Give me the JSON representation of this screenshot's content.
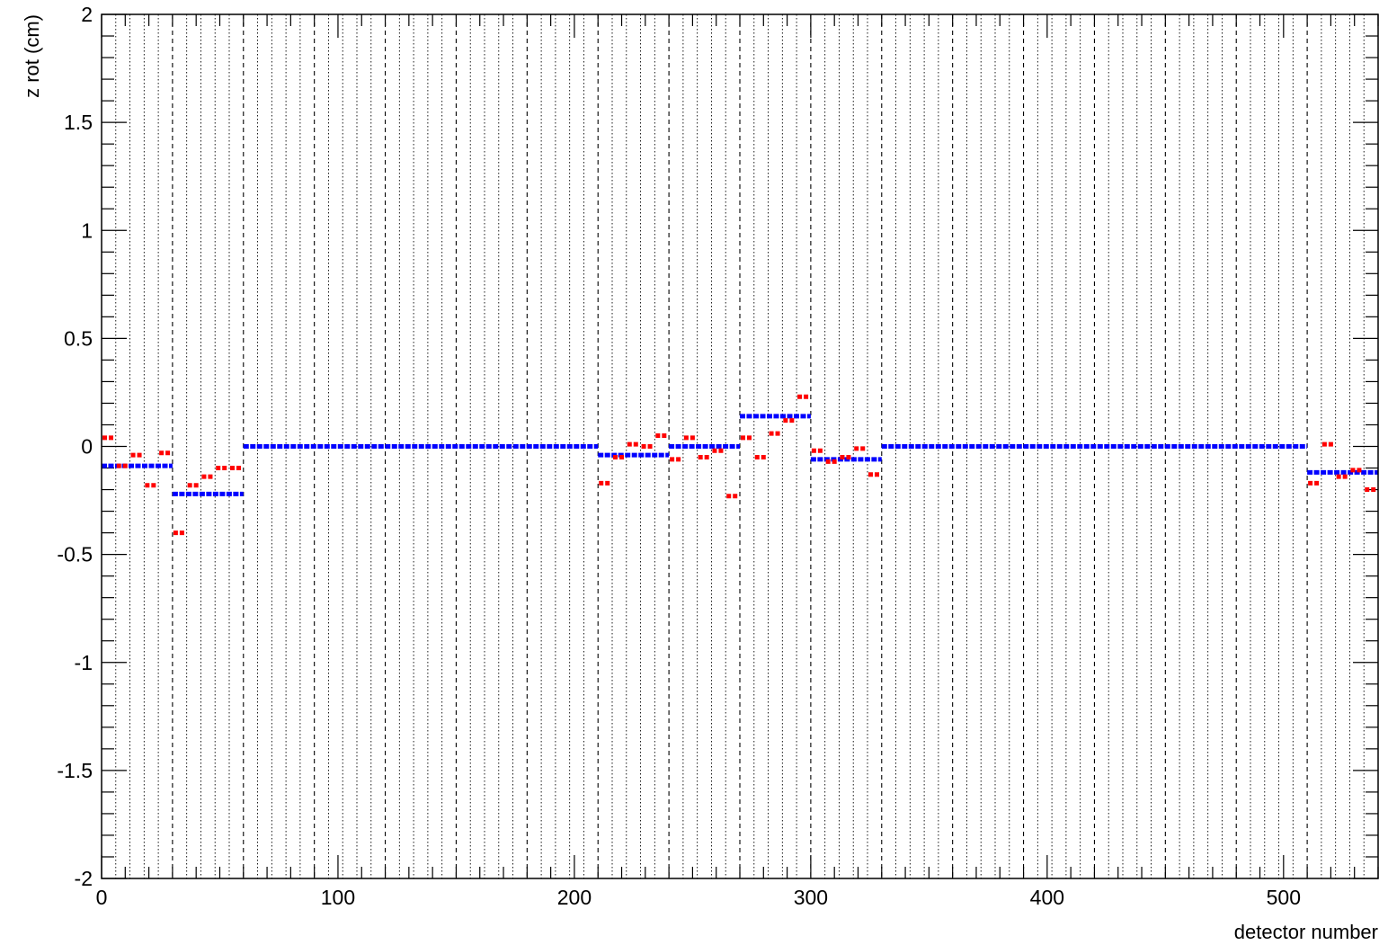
{
  "chart_data": {
    "type": "scatter",
    "title": "",
    "xlabel": "detector number",
    "ylabel": "z rot (cm)",
    "xlim": [
      0,
      540
    ],
    "ylim": [
      -2,
      2
    ],
    "x_ticks": [
      0,
      100,
      200,
      300,
      400,
      500
    ],
    "x_tick_labels": [
      "0",
      "100",
      "200",
      "300",
      "400",
      "500"
    ],
    "y_ticks": [
      -2,
      -1.5,
      -1,
      -0.5,
      0,
      0.5,
      1,
      1.5,
      2
    ],
    "y_tick_labels": [
      "-2",
      "-1.5",
      "-1",
      "-0.5",
      "0",
      "0.5",
      "1",
      "1.5",
      "2"
    ],
    "grid": {
      "dotted_every": 6,
      "dashed_every": 30
    },
    "series": [
      {
        "color": "#ff0000",
        "marker": "short horizontal dash per detector",
        "segments": [
          {
            "x": [
              0,
              6
            ],
            "y": 0.04
          },
          {
            "x": [
              6,
              12
            ],
            "y": -0.09
          },
          {
            "x": [
              12,
              18
            ],
            "y": -0.04
          },
          {
            "x": [
              18,
              24
            ],
            "y": -0.18
          },
          {
            "x": [
              24,
              30
            ],
            "y": -0.03
          },
          {
            "x": [
              30,
              36
            ],
            "y": -0.4
          },
          {
            "x": [
              36,
              42
            ],
            "y": -0.18
          },
          {
            "x": [
              42,
              48
            ],
            "y": -0.14
          },
          {
            "x": [
              48,
              54
            ],
            "y": -0.1
          },
          {
            "x": [
              54,
              60
            ],
            "y": -0.1
          },
          {
            "x": [
              210,
              216
            ],
            "y": -0.17
          },
          {
            "x": [
              216,
              222
            ],
            "y": -0.05
          },
          {
            "x": [
              222,
              228
            ],
            "y": 0.01
          },
          {
            "x": [
              228,
              234
            ],
            "y": 0.0
          },
          {
            "x": [
              234,
              240
            ],
            "y": 0.05
          },
          {
            "x": [
              240,
              246
            ],
            "y": -0.06
          },
          {
            "x": [
              246,
              252
            ],
            "y": 0.04
          },
          {
            "x": [
              252,
              258
            ],
            "y": -0.05
          },
          {
            "x": [
              258,
              264
            ],
            "y": -0.02
          },
          {
            "x": [
              264,
              270
            ],
            "y": -0.23
          },
          {
            "x": [
              270,
              276
            ],
            "y": 0.04
          },
          {
            "x": [
              276,
              282
            ],
            "y": -0.05
          },
          {
            "x": [
              282,
              288
            ],
            "y": 0.06
          },
          {
            "x": [
              288,
              294
            ],
            "y": 0.12
          },
          {
            "x": [
              294,
              300
            ],
            "y": 0.23
          },
          {
            "x": [
              300,
              306
            ],
            "y": -0.02
          },
          {
            "x": [
              306,
              312
            ],
            "y": -0.07
          },
          {
            "x": [
              312,
              318
            ],
            "y": -0.05
          },
          {
            "x": [
              318,
              324
            ],
            "y": -0.01
          },
          {
            "x": [
              324,
              330
            ],
            "y": -0.13
          },
          {
            "x": [
              510,
              516
            ],
            "y": -0.17
          },
          {
            "x": [
              516,
              522
            ],
            "y": 0.01
          },
          {
            "x": [
              522,
              528
            ],
            "y": -0.14
          },
          {
            "x": [
              528,
              534
            ],
            "y": -0.11
          },
          {
            "x": [
              534,
              540
            ],
            "y": -0.2
          }
        ]
      },
      {
        "color": "#0000ff",
        "marker": "horizontal bar per layer group",
        "segments": [
          {
            "x": [
              0,
              30
            ],
            "y": -0.09
          },
          {
            "x": [
              30,
              60
            ],
            "y": -0.22
          },
          {
            "x": [
              60,
              210
            ],
            "y": 0.0
          },
          {
            "x": [
              210,
              240
            ],
            "y": -0.04
          },
          {
            "x": [
              240,
              270
            ],
            "y": 0.0
          },
          {
            "x": [
              270,
              300
            ],
            "y": 0.14
          },
          {
            "x": [
              300,
              330
            ],
            "y": -0.06
          },
          {
            "x": [
              330,
              510
            ],
            "y": 0.0
          },
          {
            "x": [
              510,
              540
            ],
            "y": -0.12
          }
        ]
      }
    ]
  }
}
